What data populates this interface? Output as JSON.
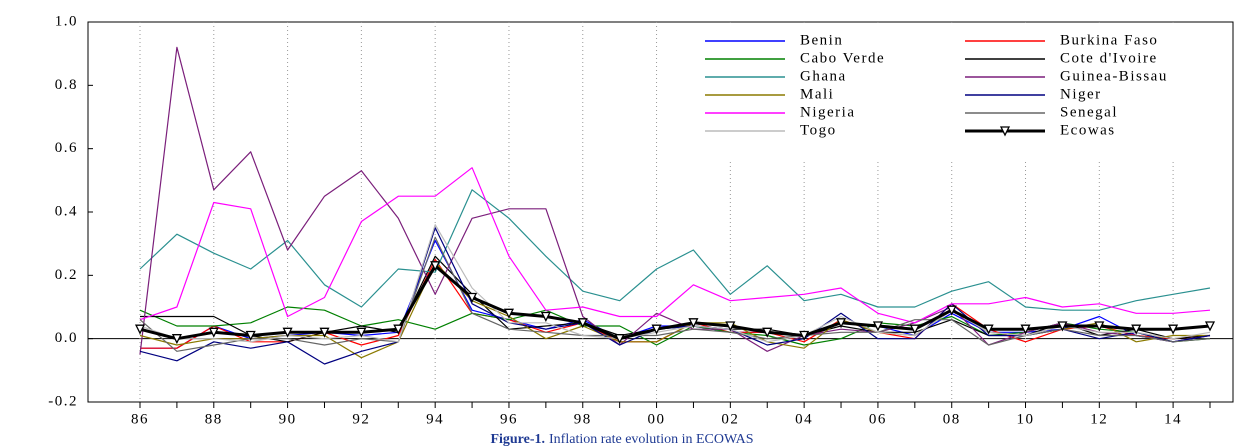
{
  "chart_data": {
    "type": "line",
    "caption_label": "Figure-1.",
    "caption": "Inflation rate evolution in ECOWAS",
    "categories": [
      "86",
      null,
      "88",
      null,
      "90",
      null,
      "92",
      null,
      "94",
      null,
      "96",
      null,
      "98",
      null,
      "00",
      null,
      "02",
      null,
      "04",
      null,
      "06",
      null,
      "08",
      null,
      "10",
      null,
      "12",
      null,
      "14",
      null
    ],
    "ylim": [
      -0.2,
      1.0
    ],
    "yticks": [
      -0.2,
      {
        "value": 0,
        "label": "0.0"
      },
      0.2,
      0.4,
      0.6,
      0.8,
      {
        "value": 1,
        "label": "1.0"
      }
    ],
    "grid": "x",
    "zero_line": true,
    "legend_position": "upper right",
    "series": [
      {
        "name": "Benin",
        "color": "#0000ff",
        "values": [
          -0.03,
          -0.03,
          0.04,
          0.0,
          0.01,
          0.02,
          0.01,
          0.02,
          0.31,
          0.09,
          0.06,
          0.03,
          0.06,
          0.0,
          0.04,
          0.04,
          0.02,
          0.02,
          0.01,
          0.05,
          0.04,
          0.01,
          0.08,
          0.02,
          0.02,
          0.03,
          0.07,
          0.01,
          -0.01,
          0.01
        ]
      },
      {
        "name": "Burkina Faso",
        "color": "#ff0000",
        "values": [
          -0.03,
          -0.03,
          0.04,
          -0.01,
          -0.01,
          0.02,
          -0.02,
          0.01,
          0.25,
          0.08,
          0.06,
          0.02,
          0.05,
          -0.01,
          -0.01,
          0.05,
          0.02,
          0.02,
          -0.01,
          0.06,
          0.02,
          0.0,
          0.11,
          0.03,
          -0.01,
          0.03,
          0.04,
          0.01,
          0.0,
          0.01
        ]
      },
      {
        "name": "Cabo Verde",
        "color": "#008000",
        "values": [
          0.09,
          0.04,
          0.04,
          0.05,
          0.1,
          0.09,
          0.04,
          0.06,
          0.03,
          0.08,
          0.06,
          0.09,
          0.04,
          0.04,
          -0.02,
          0.04,
          0.02,
          0.01,
          -0.02,
          0.0,
          0.05,
          0.04,
          0.07,
          0.01,
          0.02,
          0.05,
          0.03,
          0.02,
          -0.01,
          0.0
        ]
      },
      {
        "name": "Cote d'Ivoire",
        "color": "#000000",
        "values": [
          0.07,
          0.07,
          0.07,
          0.01,
          -0.01,
          0.02,
          0.04,
          0.02,
          0.26,
          0.14,
          0.03,
          0.04,
          0.05,
          0.01,
          0.03,
          0.04,
          0.03,
          0.03,
          0.01,
          0.04,
          0.02,
          0.02,
          0.06,
          0.01,
          0.01,
          0.05,
          0.01,
          0.03,
          0.0,
          0.01
        ]
      },
      {
        "name": "Ghana",
        "color": "#2a9090",
        "values": [
          0.22,
          0.33,
          0.27,
          0.22,
          0.31,
          0.17,
          0.1,
          0.22,
          0.21,
          0.47,
          0.38,
          0.26,
          0.15,
          0.12,
          0.22,
          0.28,
          0.14,
          0.23,
          0.12,
          0.14,
          0.1,
          0.1,
          0.15,
          0.18,
          0.1,
          0.09,
          0.09,
          0.12,
          0.14,
          0.16
        ]
      },
      {
        "name": "Guinea-Bissau",
        "color": "#7b1f7b",
        "values": [
          -0.05,
          0.92,
          0.47,
          0.59,
          0.28,
          0.45,
          0.53,
          0.38,
          0.14,
          0.38,
          0.41,
          0.41,
          0.07,
          -0.02,
          0.08,
          0.03,
          0.03,
          -0.04,
          0.01,
          0.03,
          0.02,
          0.05,
          0.1,
          -0.02,
          0.02,
          0.05,
          0.02,
          0.01,
          -0.01,
          0.01
        ]
      },
      {
        "name": "Mali",
        "color": "#8b7a00",
        "values": [
          0.01,
          -0.02,
          0.0,
          0.0,
          0.01,
          0.01,
          -0.06,
          -0.01,
          0.24,
          0.12,
          0.07,
          0.0,
          0.04,
          -0.01,
          -0.01,
          0.05,
          0.05,
          -0.01,
          -0.03,
          0.06,
          0.02,
          0.01,
          0.09,
          0.02,
          0.01,
          0.03,
          0.05,
          -0.01,
          0.01,
          0.01
        ]
      },
      {
        "name": "Niger",
        "color": "#000080",
        "values": [
          -0.04,
          -0.07,
          -0.01,
          -0.03,
          -0.01,
          -0.08,
          -0.04,
          -0.01,
          0.35,
          0.11,
          0.05,
          0.03,
          0.05,
          -0.02,
          0.03,
          0.04,
          0.03,
          -0.02,
          0.0,
          0.08,
          0.0,
          0.0,
          0.11,
          0.01,
          0.01,
          0.03,
          0.0,
          0.02,
          -0.01,
          0.01
        ]
      },
      {
        "name": "Nigeria",
        "color": "#ff00ff",
        "values": [
          0.06,
          0.1,
          0.43,
          0.41,
          0.07,
          0.13,
          0.37,
          0.45,
          0.45,
          0.54,
          0.26,
          0.09,
          0.1,
          0.07,
          0.07,
          0.17,
          0.12,
          0.13,
          0.14,
          0.16,
          0.08,
          0.05,
          0.11,
          0.11,
          0.13,
          0.1,
          0.11,
          0.08,
          0.08,
          0.09
        ]
      },
      {
        "name": "Senegal",
        "color": "#666666",
        "values": [
          0.06,
          -0.04,
          -0.02,
          0.0,
          0.0,
          -0.02,
          0.0,
          -0.01,
          0.32,
          0.08,
          0.03,
          0.02,
          0.01,
          0.01,
          0.01,
          0.03,
          0.02,
          0.0,
          0.01,
          0.02,
          0.02,
          0.06,
          0.06,
          -0.02,
          0.01,
          0.03,
          0.01,
          0.01,
          -0.01,
          0.0
        ]
      },
      {
        "name": "Togo",
        "color": "#bbbbbb",
        "values": [
          0.04,
          0.0,
          0.0,
          -0.01,
          0.01,
          0.0,
          0.01,
          -0.01,
          0.36,
          0.16,
          0.05,
          0.05,
          0.01,
          0.0,
          0.02,
          0.04,
          0.03,
          -0.01,
          0.01,
          0.07,
          0.02,
          0.01,
          0.09,
          0.02,
          0.01,
          0.04,
          0.02,
          0.02,
          0.0,
          0.02
        ]
      },
      {
        "name": "Ecowas",
        "color": "#000000",
        "width": 3,
        "marker": "triangle-down",
        "values": [
          0.03,
          0.0,
          0.02,
          0.01,
          0.02,
          0.02,
          0.02,
          0.03,
          0.23,
          0.13,
          0.08,
          0.07,
          0.05,
          0.0,
          0.03,
          0.05,
          0.04,
          0.02,
          0.01,
          0.05,
          0.04,
          0.03,
          0.09,
          0.03,
          0.03,
          0.04,
          0.04,
          0.03,
          0.03,
          0.04
        ]
      }
    ]
  }
}
